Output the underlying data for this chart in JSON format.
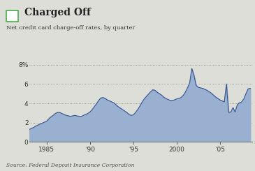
{
  "title": "Charged Off",
  "subtitle": "Net credit card charge-off rates, by quarter",
  "source": "Source: Federal Deposit Insurance Corporation",
  "fill_color": "#9ab0d0",
  "line_color": "#3a5a96",
  "background_color": "#deded8",
  "plot_bg_color": "#deded8",
  "ylim": [
    0,
    8.5
  ],
  "yticks": [
    0,
    2,
    4,
    6,
    8
  ],
  "ytick_labels": [
    "0",
    "2",
    "4",
    "6",
    "8%"
  ],
  "xtick_years": [
    1985,
    1990,
    1995,
    2000,
    2005
  ],
  "xtick_labels": [
    "1985",
    "'90",
    "'95",
    "2000",
    "'05"
  ],
  "xlim": [
    1983.0,
    2008.75
  ],
  "data": [
    [
      1983.0,
      1.3
    ],
    [
      1983.25,
      1.4
    ],
    [
      1983.5,
      1.5
    ],
    [
      1983.75,
      1.65
    ],
    [
      1984.0,
      1.75
    ],
    [
      1984.25,
      1.85
    ],
    [
      1984.5,
      1.95
    ],
    [
      1984.75,
      2.05
    ],
    [
      1985.0,
      2.15
    ],
    [
      1985.25,
      2.4
    ],
    [
      1985.5,
      2.6
    ],
    [
      1985.75,
      2.75
    ],
    [
      1986.0,
      2.95
    ],
    [
      1986.25,
      3.05
    ],
    [
      1986.5,
      3.05
    ],
    [
      1986.75,
      2.95
    ],
    [
      1987.0,
      2.85
    ],
    [
      1987.25,
      2.75
    ],
    [
      1987.5,
      2.7
    ],
    [
      1987.75,
      2.65
    ],
    [
      1988.0,
      2.7
    ],
    [
      1988.25,
      2.75
    ],
    [
      1988.5,
      2.7
    ],
    [
      1988.75,
      2.65
    ],
    [
      1989.0,
      2.65
    ],
    [
      1989.25,
      2.75
    ],
    [
      1989.5,
      2.85
    ],
    [
      1989.75,
      2.95
    ],
    [
      1990.0,
      3.1
    ],
    [
      1990.25,
      3.35
    ],
    [
      1990.5,
      3.65
    ],
    [
      1990.75,
      3.95
    ],
    [
      1991.0,
      4.3
    ],
    [
      1991.25,
      4.55
    ],
    [
      1991.5,
      4.6
    ],
    [
      1991.75,
      4.5
    ],
    [
      1992.0,
      4.35
    ],
    [
      1992.25,
      4.25
    ],
    [
      1992.5,
      4.15
    ],
    [
      1992.75,
      4.05
    ],
    [
      1993.0,
      3.85
    ],
    [
      1993.25,
      3.65
    ],
    [
      1993.5,
      3.5
    ],
    [
      1993.75,
      3.35
    ],
    [
      1994.0,
      3.2
    ],
    [
      1994.25,
      3.05
    ],
    [
      1994.5,
      2.85
    ],
    [
      1994.75,
      2.75
    ],
    [
      1995.0,
      2.8
    ],
    [
      1995.25,
      3.05
    ],
    [
      1995.5,
      3.35
    ],
    [
      1995.75,
      3.7
    ],
    [
      1996.0,
      4.1
    ],
    [
      1996.25,
      4.45
    ],
    [
      1996.5,
      4.7
    ],
    [
      1996.75,
      4.95
    ],
    [
      1997.0,
      5.2
    ],
    [
      1997.25,
      5.4
    ],
    [
      1997.5,
      5.35
    ],
    [
      1997.75,
      5.15
    ],
    [
      1998.0,
      5.0
    ],
    [
      1998.25,
      4.85
    ],
    [
      1998.5,
      4.65
    ],
    [
      1998.75,
      4.5
    ],
    [
      1999.0,
      4.4
    ],
    [
      1999.25,
      4.3
    ],
    [
      1999.5,
      4.3
    ],
    [
      1999.75,
      4.35
    ],
    [
      2000.0,
      4.45
    ],
    [
      2000.25,
      4.5
    ],
    [
      2000.5,
      4.6
    ],
    [
      2000.75,
      4.8
    ],
    [
      2001.0,
      5.15
    ],
    [
      2001.25,
      5.6
    ],
    [
      2001.5,
      6.1
    ],
    [
      2001.75,
      7.6
    ],
    [
      2002.0,
      6.9
    ],
    [
      2002.25,
      5.85
    ],
    [
      2002.5,
      5.65
    ],
    [
      2002.75,
      5.6
    ],
    [
      2003.0,
      5.55
    ],
    [
      2003.25,
      5.45
    ],
    [
      2003.5,
      5.35
    ],
    [
      2003.75,
      5.2
    ],
    [
      2004.0,
      5.05
    ],
    [
      2004.25,
      4.85
    ],
    [
      2004.5,
      4.65
    ],
    [
      2004.75,
      4.5
    ],
    [
      2005.0,
      4.35
    ],
    [
      2005.25,
      4.25
    ],
    [
      2005.5,
      4.15
    ],
    [
      2005.75,
      6.0
    ],
    [
      2006.0,
      3.05
    ],
    [
      2006.25,
      3.1
    ],
    [
      2006.5,
      3.55
    ],
    [
      2006.75,
      3.1
    ],
    [
      2007.0,
      3.85
    ],
    [
      2007.25,
      4.05
    ],
    [
      2007.5,
      4.15
    ],
    [
      2007.75,
      4.45
    ],
    [
      2008.0,
      5.0
    ],
    [
      2008.25,
      5.5
    ],
    [
      2008.5,
      5.55
    ]
  ]
}
